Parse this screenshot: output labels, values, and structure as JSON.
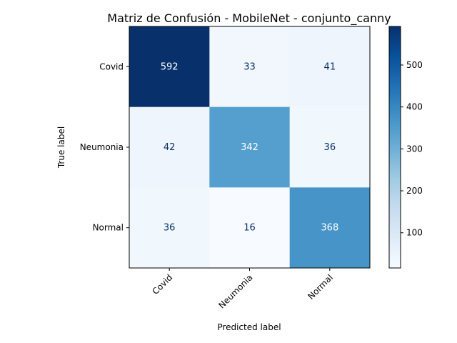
{
  "chart_data": {
    "type": "heatmap",
    "title": "Matriz de Confusión - MobileNet - conjunto_canny",
    "xlabel": "Predicted label",
    "ylabel": "True label",
    "x_categories": [
      "Covid",
      "Neumonia",
      "Normal"
    ],
    "y_categories": [
      "Covid",
      "Neumonia",
      "Normal"
    ],
    "values": [
      [
        592,
        33,
        41
      ],
      [
        42,
        342,
        36
      ],
      [
        36,
        16,
        368
      ]
    ],
    "colormap": "Blues",
    "colorbar": {
      "ticks": [
        100,
        200,
        300,
        400,
        500
      ],
      "range": [
        16,
        592
      ]
    },
    "grid": false
  }
}
